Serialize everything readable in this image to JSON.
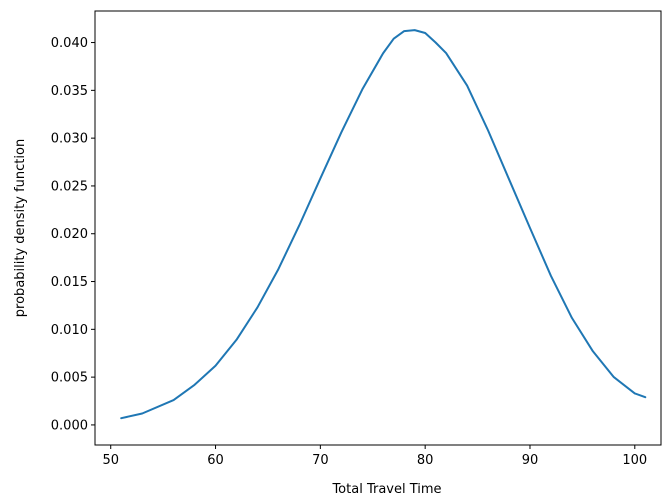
{
  "chart_data": {
    "type": "line",
    "title": "",
    "xlabel": "Total Travel Time",
    "ylabel": "probability density function",
    "xlim": [
      48.5,
      102.5
    ],
    "ylim": [
      -0.0021,
      0.0433
    ],
    "xticks": [
      50,
      60,
      70,
      80,
      90,
      100
    ],
    "yticks": [
      0.0,
      0.005,
      0.01,
      0.015,
      0.02,
      0.025,
      0.03,
      0.035,
      0.04
    ],
    "xtick_labels": [
      "50",
      "60",
      "70",
      "80",
      "90",
      "100"
    ],
    "ytick_labels": [
      "0.000",
      "0.005",
      "0.010",
      "0.015",
      "0.020",
      "0.025",
      "0.030",
      "0.035",
      "0.040"
    ],
    "grid": false,
    "color": "#1f77b4",
    "series": [
      {
        "x": [
          51,
          53,
          56,
          58,
          60,
          62,
          64,
          66,
          68,
          70,
          72,
          74,
          76,
          77,
          78,
          79,
          80,
          81,
          82,
          84,
          86,
          88,
          90,
          92,
          94,
          96,
          98,
          100,
          101
        ],
        "y": [
          0.0007,
          0.0012,
          0.0026,
          0.0042,
          0.0062,
          0.0089,
          0.0123,
          0.0163,
          0.0209,
          0.0258,
          0.0306,
          0.0351,
          0.0389,
          0.0404,
          0.0412,
          0.0413,
          0.041,
          0.04,
          0.0389,
          0.0355,
          0.0308,
          0.0257,
          0.0206,
          0.0156,
          0.0112,
          0.0077,
          0.005,
          0.0033,
          0.0029
        ]
      }
    ]
  }
}
